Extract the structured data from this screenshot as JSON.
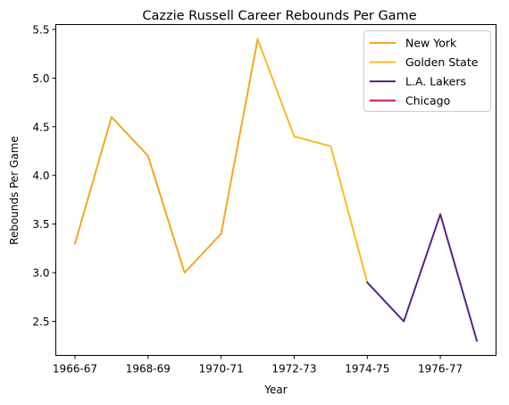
{
  "chart_data": {
    "type": "line",
    "title": "Cazzie Russell Career Rebounds Per Game",
    "xlabel": "Year",
    "ylabel": "Rebounds Per Game",
    "x_ticks": [
      "1966-67",
      "1968-69",
      "1970-71",
      "1972-73",
      "1974-75",
      "1976-77"
    ],
    "y_ticks": [
      "2.5",
      "3.0",
      "3.5",
      "4.0",
      "4.5",
      "5.0",
      "5.5"
    ],
    "ylim": [
      2.15,
      5.55
    ],
    "x": [
      "1966-67",
      "1967-68",
      "1968-69",
      "1969-70",
      "1970-71",
      "1971-72",
      "1972-73",
      "1973-74",
      "1974-75",
      "1975-76",
      "1976-77",
      "1977-78"
    ],
    "series": [
      {
        "name": "New York",
        "color": "#F5A623",
        "x": [
          "1966-67",
          "1967-68",
          "1968-69",
          "1969-70",
          "1970-71",
          "1971-72"
        ],
        "values": [
          3.3,
          4.6,
          4.2,
          3.0,
          3.4,
          5.4
        ]
      },
      {
        "name": "Golden State",
        "color": "#FDB927",
        "x": [
          "1971-72",
          "1972-73",
          "1973-74",
          "1974-75"
        ],
        "values": [
          5.4,
          4.4,
          4.3,
          2.9
        ]
      },
      {
        "name": "L.A. Lakers",
        "color": "#552583",
        "x": [
          "1974-75",
          "1975-76",
          "1976-77",
          "1977-78"
        ],
        "values": [
          2.9,
          2.5,
          3.6,
          2.3
        ]
      },
      {
        "name": "Chicago",
        "color": "#CE1141",
        "x": [],
        "values": []
      }
    ],
    "legend_position": "top-right",
    "grid": false
  }
}
